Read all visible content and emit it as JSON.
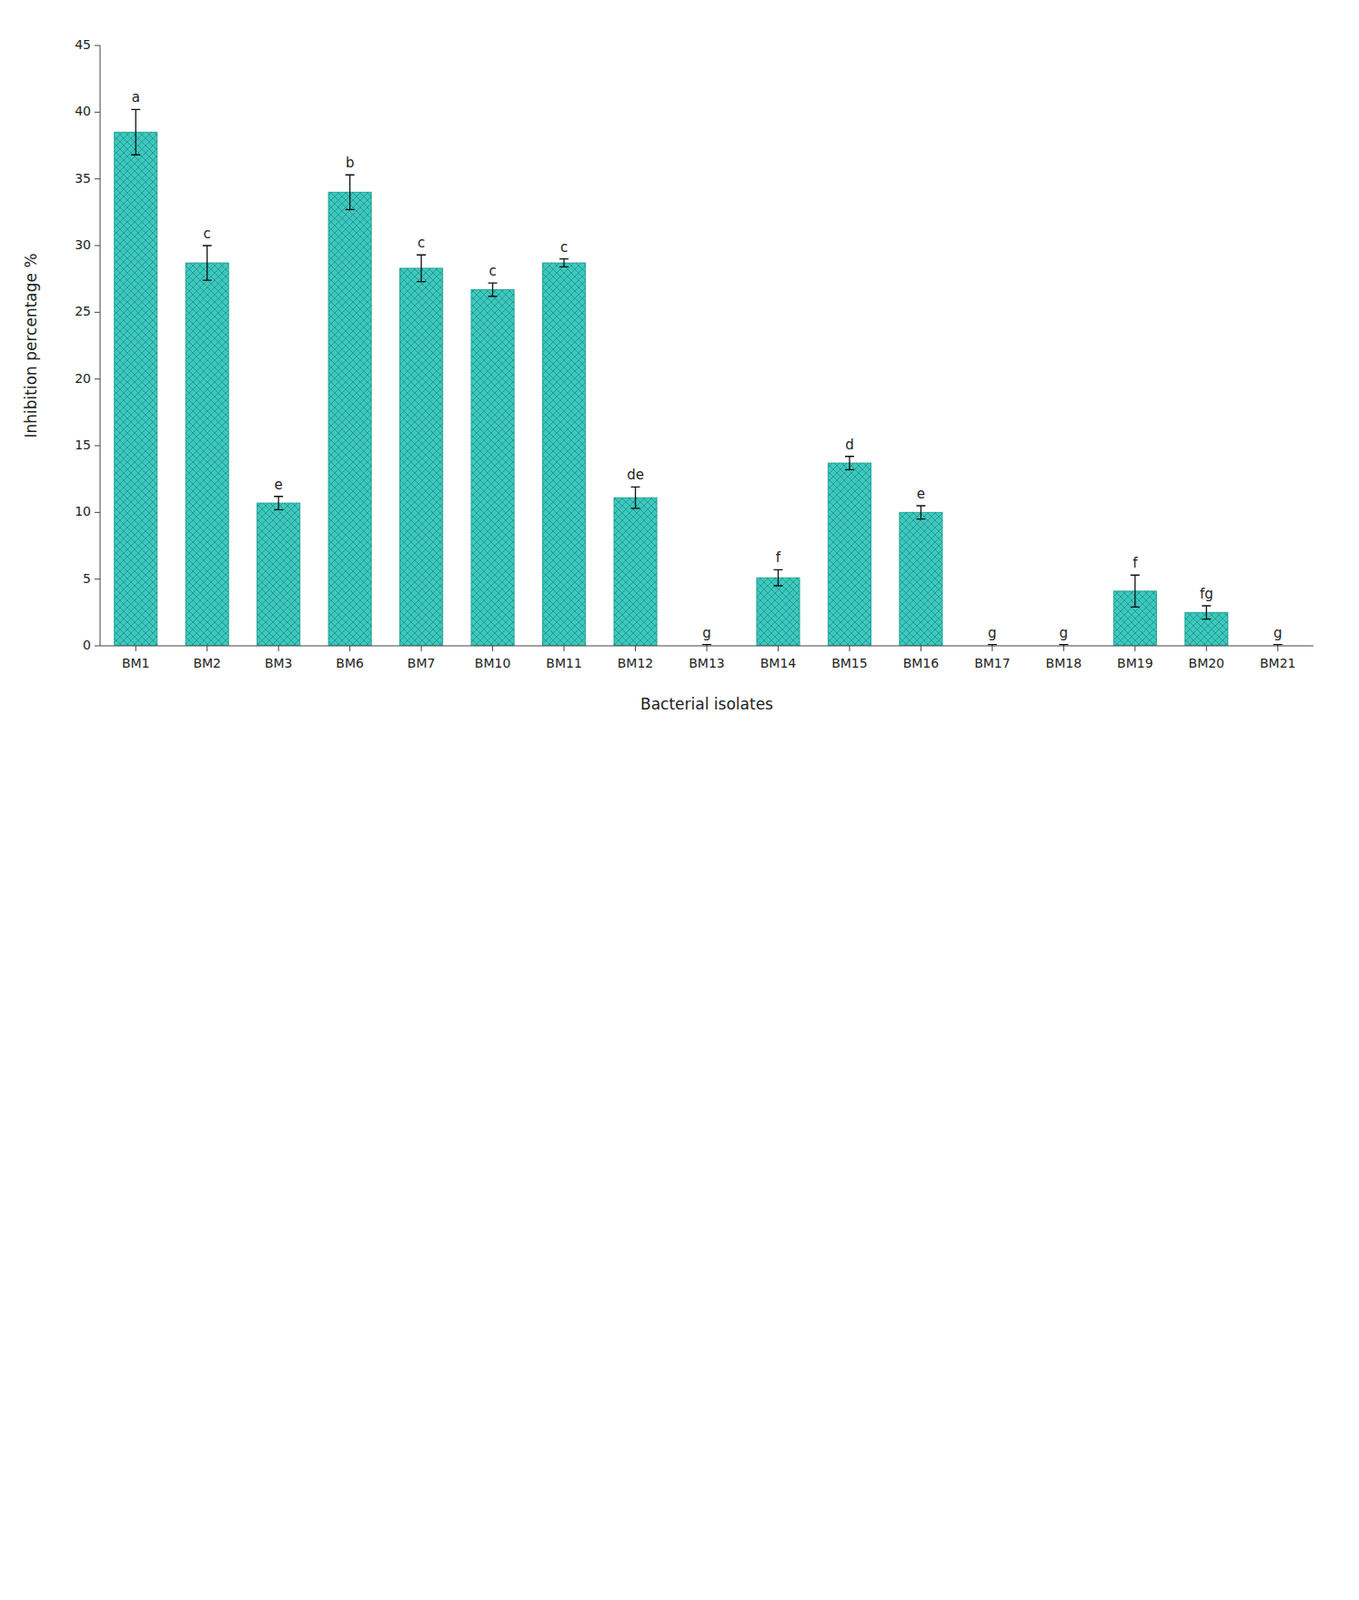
{
  "chart_data": {
    "type": "bar",
    "categories": [
      "BM1",
      "BM2",
      "BM3",
      "BM6",
      "BM7",
      "BM10",
      "BM11",
      "BM12",
      "BM13",
      "BM14",
      "BM15",
      "BM16",
      "BM17",
      "BM18",
      "BM19",
      "BM20",
      "BM21"
    ],
    "values": [
      38.5,
      28.7,
      10.7,
      34.0,
      28.3,
      26.7,
      28.7,
      11.1,
      0.0,
      5.1,
      13.7,
      10.0,
      0.0,
      0.0,
      4.1,
      2.5,
      0.0
    ],
    "errors": [
      1.7,
      1.3,
      0.5,
      1.3,
      1.0,
      0.5,
      0.3,
      0.8,
      0.1,
      0.6,
      0.5,
      0.5,
      0.1,
      0.1,
      1.2,
      0.5,
      0.1
    ],
    "annotations": [
      "a",
      "c",
      "e",
      "b",
      "c",
      "c",
      "c",
      "de",
      "g",
      "f",
      "d",
      "e",
      "g",
      "g",
      "f",
      "fg",
      "g"
    ],
    "color": "#3DC8BE",
    "xlabel": "Bacterial isolates",
    "ylabel": "Inhibition percentage %",
    "ylim": [
      0,
      45
    ],
    "yticks": [
      0,
      5,
      10,
      15,
      20,
      25,
      30,
      35,
      40,
      45
    ],
    "grid": false
  }
}
